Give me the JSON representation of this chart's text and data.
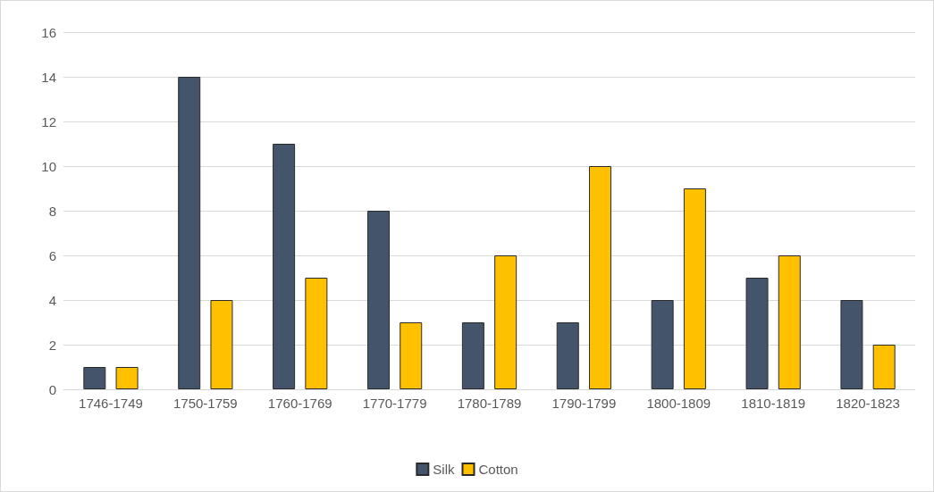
{
  "chart_data": {
    "type": "bar",
    "categories": [
      "1746-1749",
      "1750-1759",
      "1760-1769",
      "1770-1779",
      "1780-1789",
      "1790-1799",
      "1800-1809",
      "1810-1819",
      "1820-1823"
    ],
    "series": [
      {
        "name": "Silk",
        "color": "#44546a",
        "values": [
          1,
          14,
          11,
          8,
          3,
          3,
          4,
          5,
          4
        ]
      },
      {
        "name": "Cotton",
        "color": "#ffc000",
        "values": [
          1,
          4,
          5,
          3,
          6,
          10,
          9,
          6,
          2
        ]
      }
    ],
    "ylim": [
      0,
      16
    ],
    "yticks": [
      0,
      2,
      4,
      6,
      8,
      10,
      12,
      14,
      16
    ],
    "grid": "y",
    "legend": "bottom"
  }
}
